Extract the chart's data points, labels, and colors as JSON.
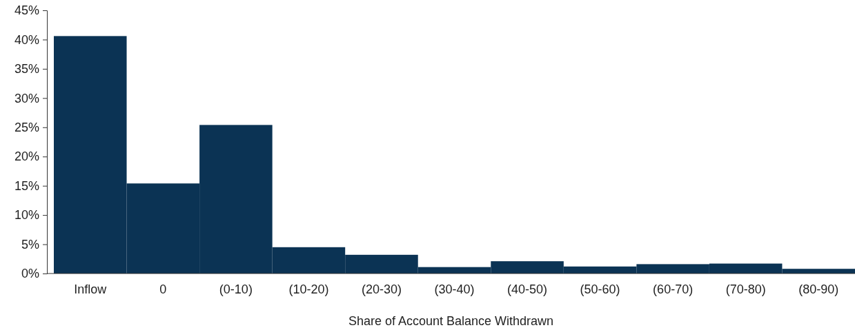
{
  "chart_data": {
    "type": "bar",
    "xlabel": "Share of Account Balance Withdrawn",
    "categories": [
      "Inflow",
      "0",
      "(0-10)",
      "(10-20)",
      "(20-30)",
      "(30-40)",
      "(40-50)",
      "(50-60)",
      "(60-70)",
      "(70-80)",
      "(80-90)"
    ],
    "values": [
      40.6,
      15.4,
      25.4,
      4.5,
      3.2,
      1.1,
      2.1,
      1.2,
      1.6,
      1.7,
      0.8
    ],
    "color": "#0b3354",
    "ylim": [
      0,
      45
    ],
    "yticks": [
      {
        "value": 0,
        "label": "0%"
      },
      {
        "value": 5,
        "label": "5%"
      },
      {
        "value": 10,
        "label": "10%"
      },
      {
        "value": 15,
        "label": "15%"
      },
      {
        "value": 20,
        "label": "20%"
      },
      {
        "value": 25,
        "label": "25%"
      },
      {
        "value": 30,
        "label": "30%"
      },
      {
        "value": 35,
        "label": "35%"
      },
      {
        "value": 40,
        "label": "40%"
      },
      {
        "value": 45,
        "label": "45%"
      }
    ],
    "grid": false
  }
}
